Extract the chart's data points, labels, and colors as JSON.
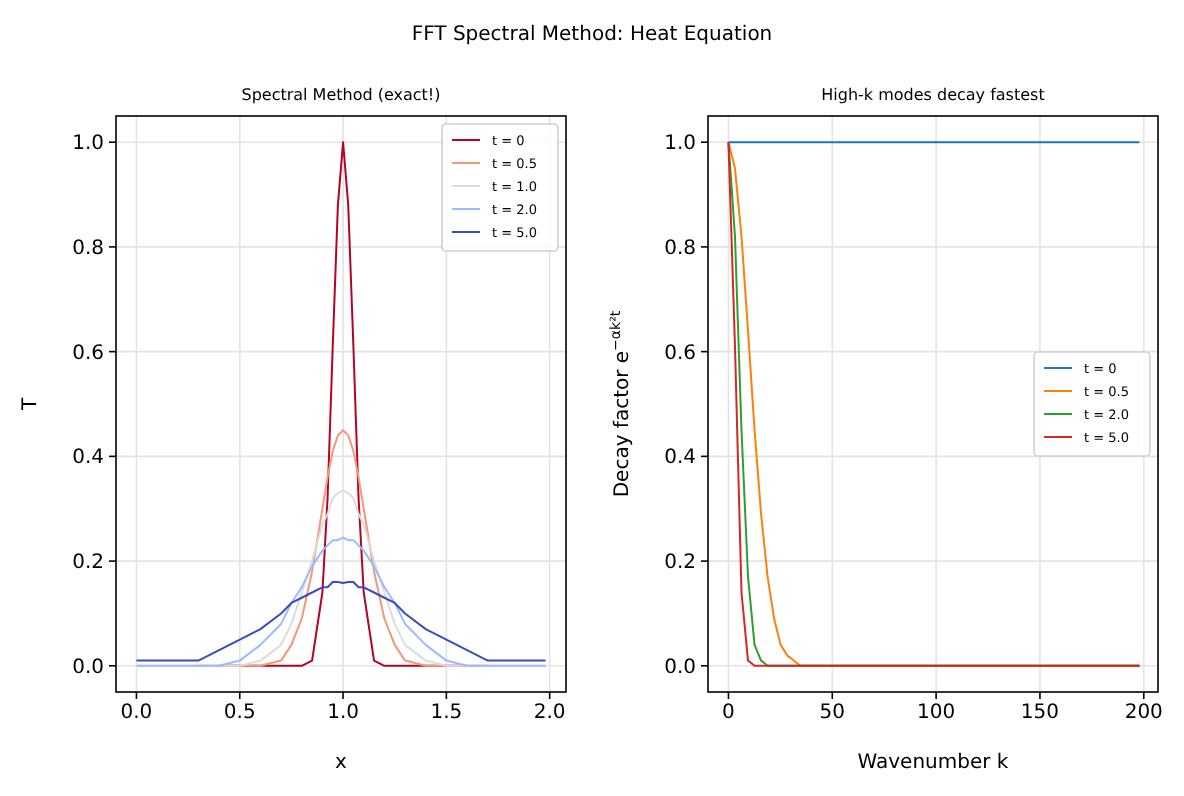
{
  "chart_data": [
    {
      "type": "line",
      "title": "FFT Spectral Method: Heat Equation",
      "subtitle": "Spectral Method (exact!)",
      "xlabel": "x",
      "ylabel": "T",
      "x": [
        0,
        0.1,
        0.2,
        0.3,
        0.4,
        0.5,
        0.6,
        0.7,
        0.75,
        0.8,
        0.85,
        0.9,
        0.925,
        0.95,
        0.975,
        1,
        1.025,
        1.05,
        1.075,
        1.1,
        1.15,
        1.2,
        1.25,
        1.3,
        1.4,
        1.5,
        1.6,
        1.7,
        1.8,
        1.9,
        1.98
      ],
      "series": [
        {
          "name": "t = 0",
          "color": "#b40426",
          "values": [
            null,
            null,
            null,
            null,
            0,
            0,
            0,
            0,
            0,
            0,
            0.01,
            0.14,
            0.32,
            0.61,
            0.88,
            1.0,
            0.88,
            0.61,
            0.32,
            0.14,
            0.01,
            0,
            0,
            0,
            0,
            0,
            0,
            null,
            null,
            null,
            null
          ]
        },
        {
          "name": "t = 0.5",
          "color": "#f4987a",
          "values": [
            null,
            null,
            null,
            0,
            0,
            0,
            0,
            0.01,
            0.04,
            0.09,
            0.18,
            0.3,
            0.36,
            0.41,
            0.44,
            0.45,
            0.44,
            0.41,
            0.36,
            0.3,
            0.18,
            0.09,
            0.04,
            0.01,
            0,
            0,
            0,
            0,
            null,
            null,
            null
          ]
        },
        {
          "name": "t = 1.0",
          "color": "#dddcdc",
          "values": [
            0,
            0,
            0,
            0,
            0,
            0,
            0.01,
            0.04,
            0.08,
            0.14,
            0.2,
            0.27,
            0.29,
            0.32,
            0.33,
            0.335,
            0.33,
            0.32,
            0.29,
            0.27,
            0.2,
            0.14,
            0.08,
            0.04,
            0.01,
            0,
            0,
            0,
            0,
            0,
            0
          ]
        },
        {
          "name": "t = 2.0",
          "color": "#9abbff",
          "values": [
            0,
            0,
            0,
            0,
            0,
            0.01,
            0.04,
            0.08,
            0.12,
            0.15,
            0.19,
            0.22,
            0.23,
            0.24,
            0.24,
            0.245,
            0.24,
            0.24,
            0.23,
            0.22,
            0.19,
            0.15,
            0.12,
            0.08,
            0.04,
            0.01,
            0,
            0,
            0,
            0,
            0
          ]
        },
        {
          "name": "t = 5.0",
          "color": "#3b4cc0",
          "values": [
            0.01,
            0.01,
            0.01,
            0.01,
            0.03,
            0.05,
            0.07,
            0.1,
            0.12,
            0.13,
            0.14,
            0.15,
            0.15,
            0.16,
            0.16,
            0.158,
            0.16,
            0.16,
            0.15,
            0.15,
            0.14,
            0.13,
            0.12,
            0.1,
            0.07,
            0.05,
            0.03,
            0.01,
            0.01,
            0.01,
            0.01
          ]
        }
      ],
      "xlim": [
        -0.099,
        2.079
      ],
      "ylim": [
        -0.05,
        1.05
      ],
      "xticks": [
        {
          "value": 0,
          "label": "0.0"
        },
        {
          "value": 0.5,
          "label": "0.5"
        },
        {
          "value": 1,
          "label": "1.0"
        },
        {
          "value": 1.5,
          "label": "1.5"
        },
        {
          "value": 2,
          "label": "2.0"
        }
      ],
      "yticks": [
        {
          "value": 0,
          "label": "0.0"
        },
        {
          "value": 0.2,
          "label": "0.2"
        },
        {
          "value": 0.4,
          "label": "0.4"
        },
        {
          "value": 0.6,
          "label": "0.6"
        },
        {
          "value": 0.8,
          "label": "0.8"
        },
        {
          "value": 1,
          "label": "1.0"
        }
      ],
      "grid": true,
      "legend": "top right",
      "marker": "none",
      "line_style": "solid"
    },
    {
      "type": "line",
      "title": "High-k modes decay fastest",
      "xlabel": "Wavenumber k",
      "ylabel": "Decay factor e$^{−αk²t}$",
      "series": [
        {
          "name": "t = 0",
          "color": "#1f77b4",
          "x": [
            0,
            197.92
          ],
          "values": [
            1,
            1
          ]
        },
        {
          "name": "t = 0.5",
          "color": "#ff7f0e",
          "x": [
            0,
            3.14,
            6.28,
            9.42,
            12.57,
            15.71,
            18.85,
            21.99,
            25.13,
            28.27,
            31.42,
            34.56,
            197.92
          ],
          "values": [
            1,
            0.95,
            0.82,
            0.64,
            0.45,
            0.29,
            0.17,
            0.09,
            0.04,
            0.02,
            0.01,
            0,
            0
          ]
        },
        {
          "name": "t = 2.0",
          "color": "#2ca02c",
          "x": [
            0,
            3.14,
            6.28,
            9.42,
            12.57,
            15.71,
            18.85,
            197.92
          ],
          "values": [
            1,
            0.82,
            0.45,
            0.17,
            0.04,
            0.01,
            0,
            0
          ]
        },
        {
          "name": "t = 5.0",
          "color": "#d62728",
          "x": [
            0,
            3.14,
            6.28,
            9.42,
            12.57,
            197.92
          ],
          "values": [
            1,
            0.61,
            0.14,
            0.01,
            0,
            0
          ]
        }
      ],
      "xlim": [
        -9.85,
        206.85
      ],
      "ylim": [
        -0.05,
        1.05
      ],
      "xticks": [
        0,
        50,
        100,
        150,
        200
      ],
      "yticks": [
        {
          "value": 0,
          "label": "0.0"
        },
        {
          "value": 0.2,
          "label": "0.2"
        },
        {
          "value": 0.4,
          "label": "0.4"
        },
        {
          "value": 0.6,
          "label": "0.6"
        },
        {
          "value": 0.8,
          "label": "0.8"
        },
        {
          "value": 1,
          "label": "1.0"
        }
      ],
      "grid": true,
      "legend": "right",
      "marker": "none",
      "line_style": "solid"
    }
  ]
}
